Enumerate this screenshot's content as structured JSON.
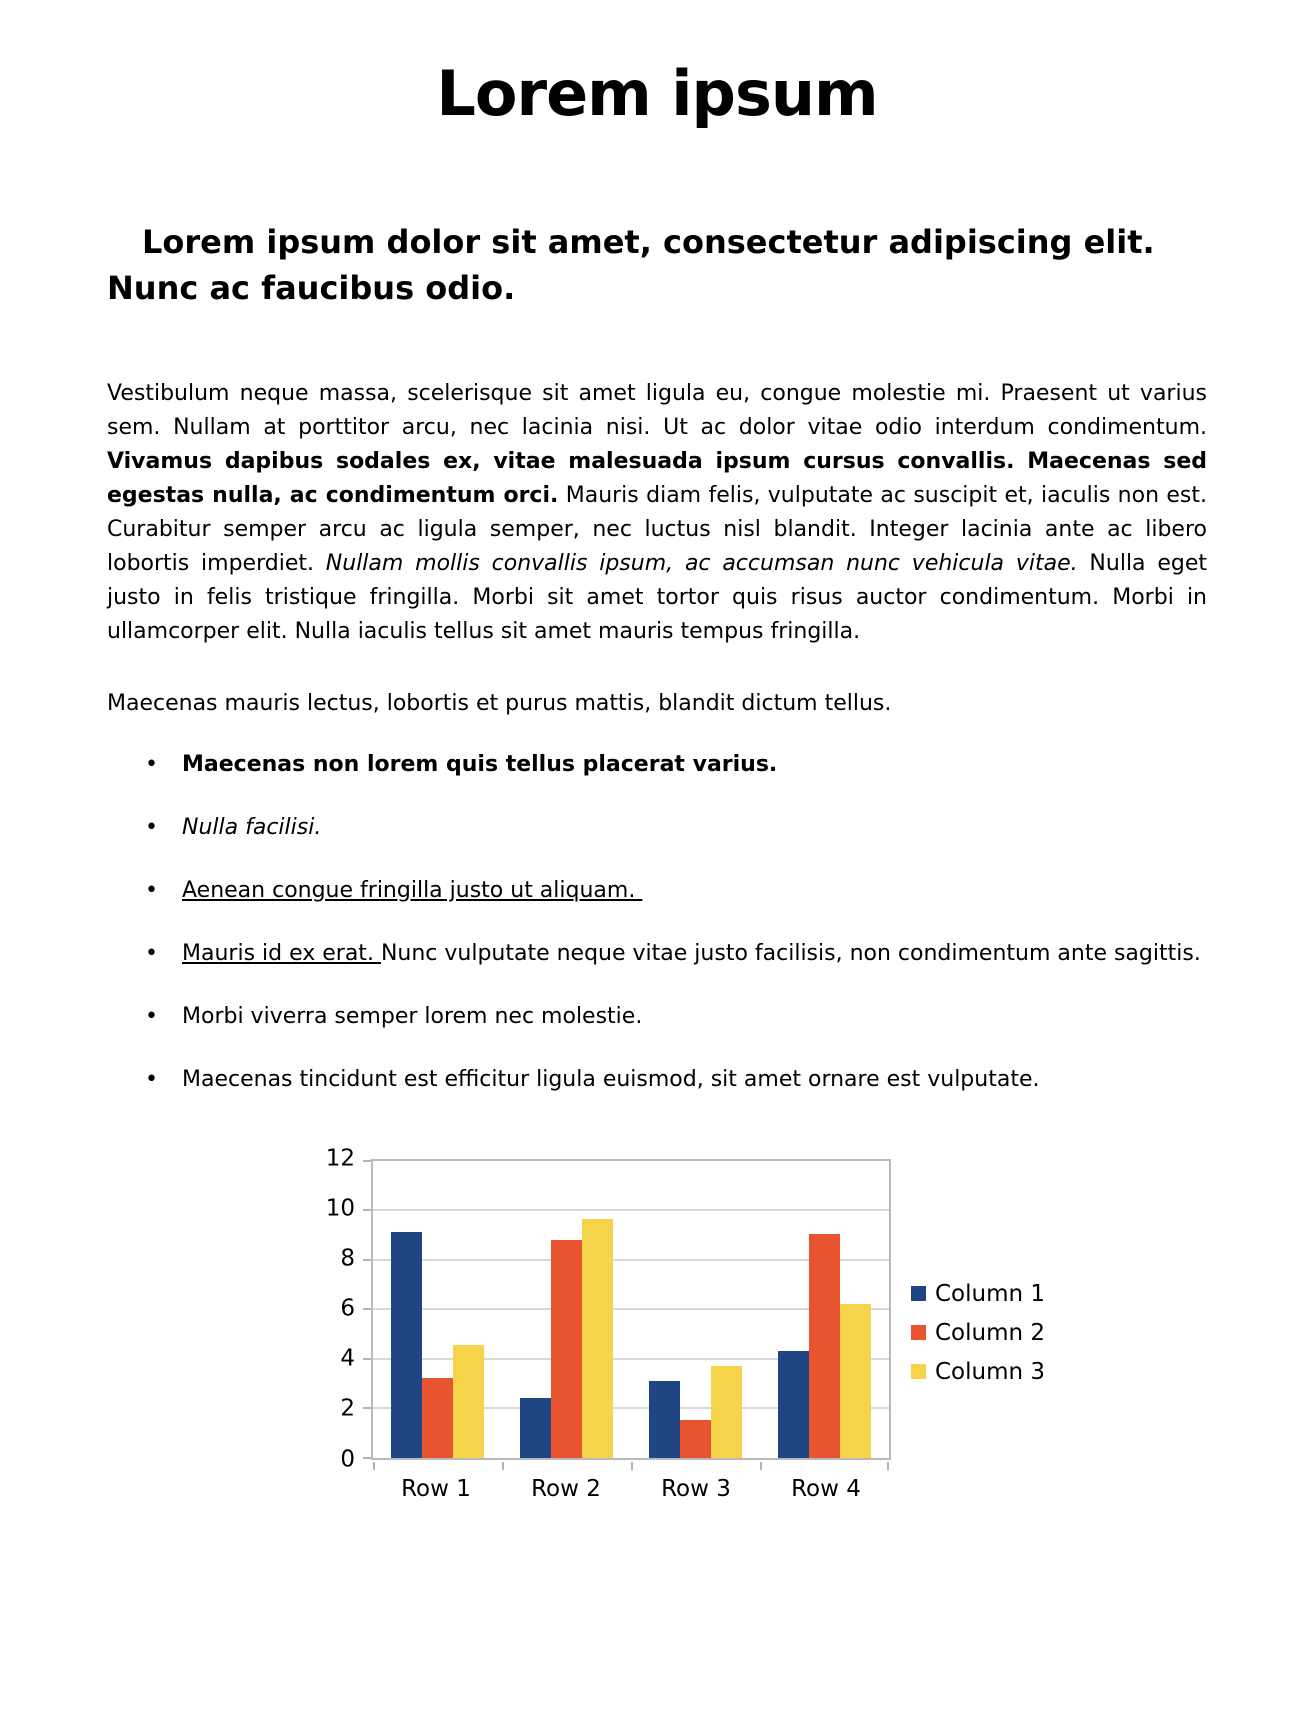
{
  "title": "Lorem ipsum",
  "heading": "Lorem ipsum dolor sit amet, consectetur adipiscing elit. Nunc ac faucibus odio.",
  "paragraph1": {
    "normal1": "Vestibulum neque massa, scelerisque sit amet ligula eu, congue molestie mi. Praesent ut varius sem. Nullam at porttitor arcu, nec lacinia nisi. Ut ac dolor vitae odio interdum condimentum. ",
    "bold": "Vivamus dapibus sodales ex, vitae malesuada ipsum cursus convallis. Maecenas sed egestas nulla, ac condimentum orci.",
    "normal2": " Mauris diam felis, vulputate ac suscipit et, iaculis non est. Curabitur semper arcu ac ligula semper, nec luctus nisl blandit. Integer lacinia ante ac libero lobortis imperdiet. ",
    "italic": "Nullam mollis convallis ipsum, ac accumsan nunc vehicula vitae.",
    "normal3": " Nulla eget justo in felis tristique fringilla. Morbi sit amet tortor quis risus auctor condimentum. Morbi in ullamcorper elit. Nulla iaculis tellus sit amet mauris tempus fringilla."
  },
  "paragraph2": "Maecenas mauris lectus, lobortis et purus mattis, blandit dictum tellus.",
  "list": {
    "bullet_char": "•",
    "items": [
      {
        "style": "bold",
        "text": "Maecenas non lorem quis tellus placerat varius."
      },
      {
        "style": "italic",
        "text": "Nulla facilisi."
      },
      {
        "style": "underline",
        "text": "Aenean congue fringilla justo ut aliquam. "
      },
      {
        "style": "mixed",
        "underlined": "Mauris id ex erat. ",
        "rest": "Nunc vulputate neque vitae justo facilisis, non condimentum ante sagittis."
      },
      {
        "style": "normal",
        "text": "Morbi viverra semper lorem nec molestie."
      },
      {
        "style": "normal",
        "text": "Maecenas tincidunt est efficitur ligula euismod, sit amet ornare est vulputate."
      }
    ]
  },
  "chart_data": {
    "type": "bar",
    "title": "",
    "xlabel": "",
    "ylabel": "",
    "categories": [
      "Row 1",
      "Row 2",
      "Row 3",
      "Row 4"
    ],
    "series": [
      {
        "name": "Column 1",
        "color": "#1F4582",
        "values": [
          9.1,
          2.4,
          3.1,
          4.3
        ]
      },
      {
        "name": "Column 2",
        "color": "#E8542F",
        "values": [
          3.2,
          8.8,
          1.5,
          9.02
        ]
      },
      {
        "name": "Column 3",
        "color": "#F5D44B",
        "values": [
          4.54,
          9.65,
          3.7,
          6.2
        ]
      }
    ],
    "ylim": [
      0,
      12
    ],
    "yticks": [
      0,
      2,
      4,
      6,
      8,
      10,
      12
    ],
    "grid": true,
    "legend_position": "right",
    "axis_color": "#b3b3b3",
    "grid_color": "#d9d9d9"
  }
}
